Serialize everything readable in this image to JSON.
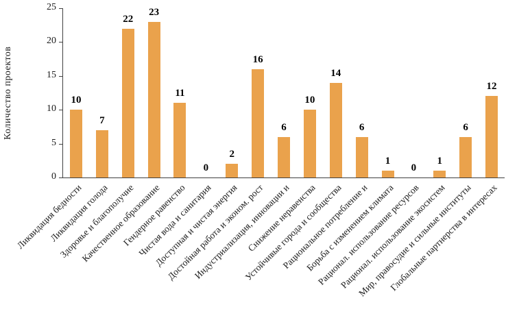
{
  "chart_data": {
    "type": "bar",
    "title": "",
    "xlabel": "",
    "ylabel": "Количество проектов",
    "ylim": [
      0,
      25
    ],
    "yticks": [
      0,
      5,
      10,
      15,
      20,
      25
    ],
    "grid": false,
    "legend": "none",
    "bar_color": "#eaa24c",
    "categories": [
      "Ликвидация бедности",
      "Ликвидация голода",
      "Здоровье и благополучие",
      "Качественное образование",
      "Гендерное равенство",
      "Чистая вода и санитария",
      "Доступная и чистая энергия",
      "Достойная работа и эконом. рост",
      "Индустриализация, инновации и",
      "Снижение неравенства",
      "Устойчивые города и сообщества",
      "Рациональное потребление и",
      "Борьба с изменением климата",
      "Рационал. использование ресурсов",
      "Рационал. использование экосистем",
      "Мир, правосудие и сильные институты",
      "Глобальные партнерства в интересах"
    ],
    "values": [
      10,
      7,
      22,
      23,
      11,
      0,
      2,
      16,
      6,
      10,
      14,
      6,
      1,
      0,
      1,
      6,
      12
    ]
  }
}
